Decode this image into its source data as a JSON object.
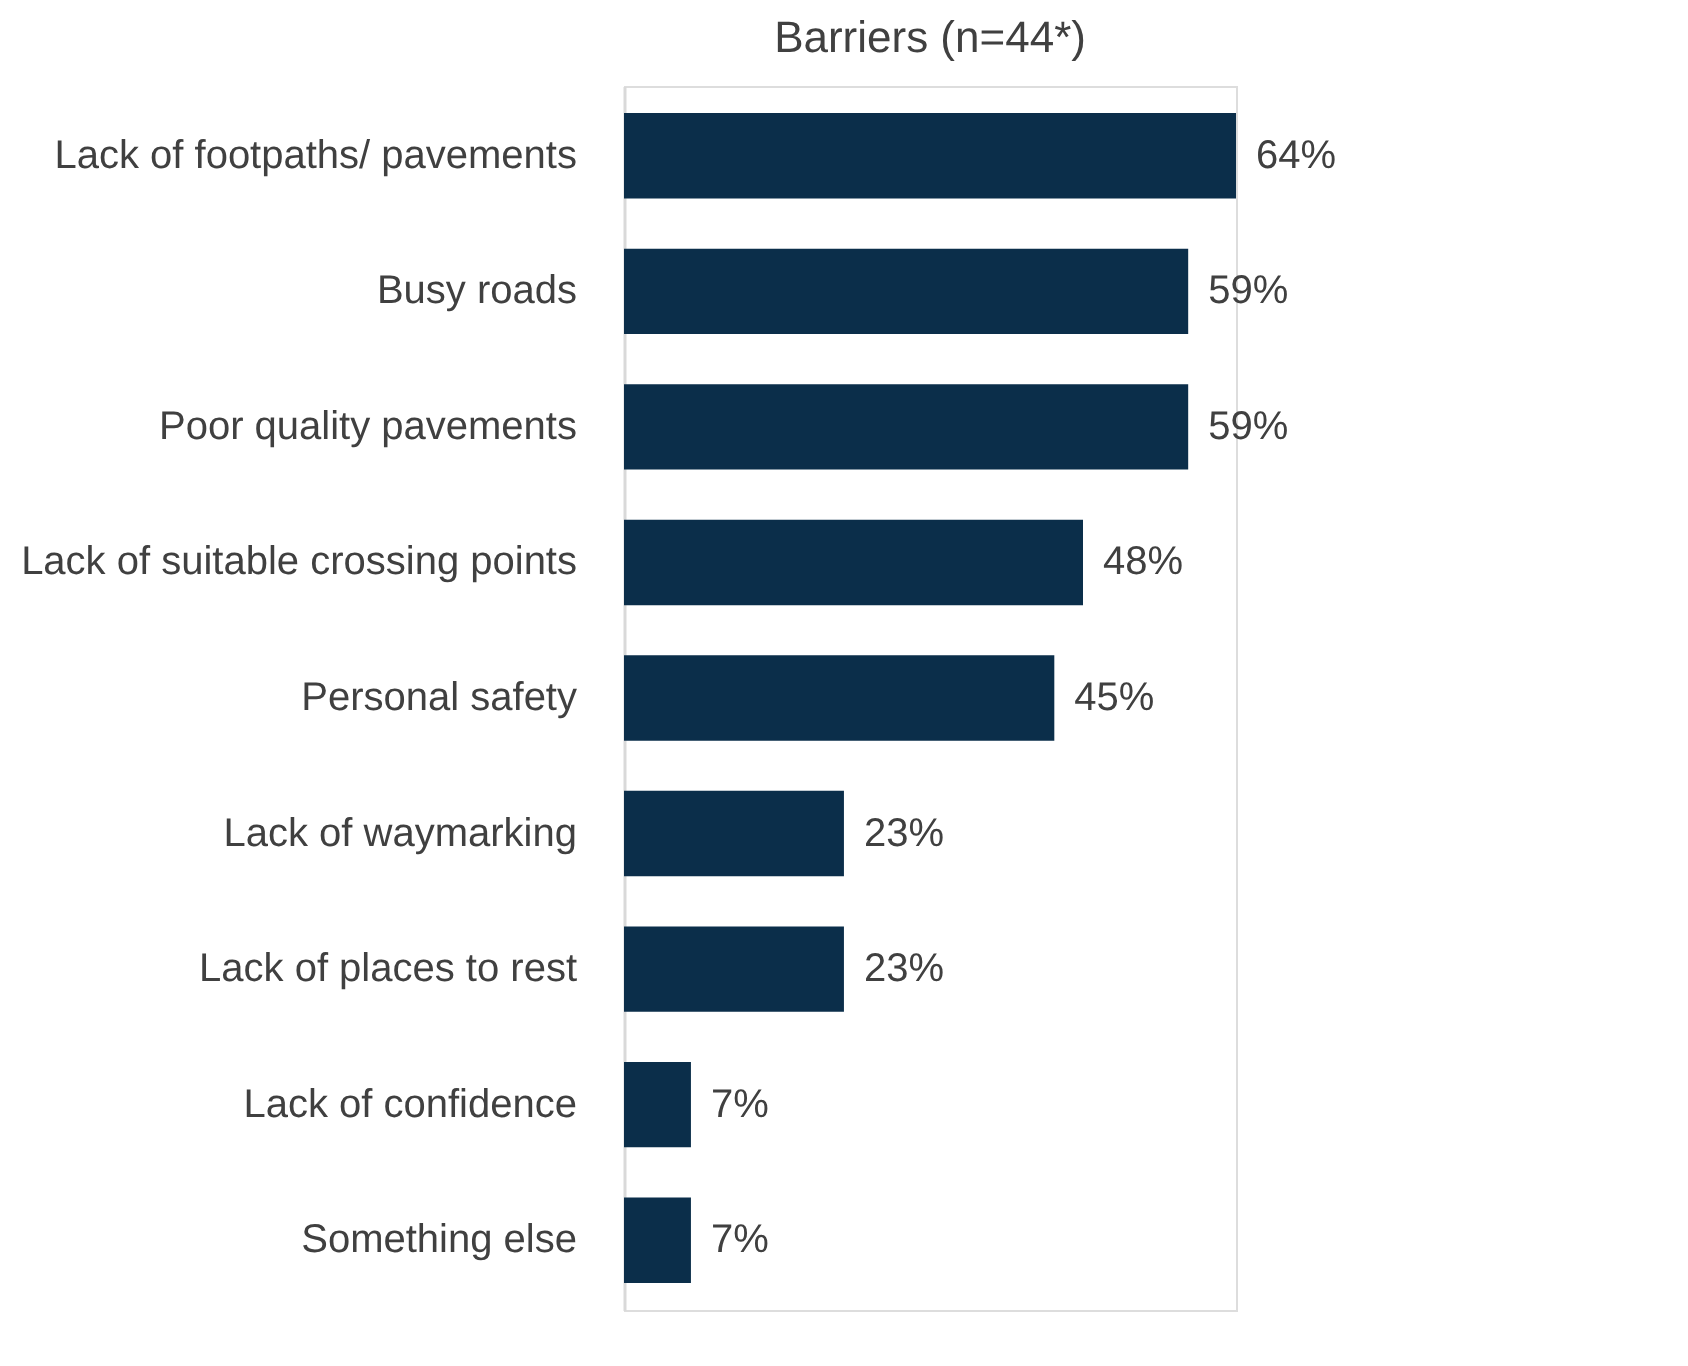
{
  "chart_data": {
    "type": "bar",
    "orientation": "horizontal",
    "title": "Barriers (n=44*)",
    "categories": [
      "Lack of footpaths/ pavements",
      "Busy roads",
      "Poor quality pavements",
      "Lack of suitable crossing points",
      "Personal safety",
      "Lack of waymarking",
      "Lack of places to rest",
      "Lack of confidence",
      "Something else"
    ],
    "values": [
      64,
      59,
      59,
      48,
      45,
      23,
      23,
      7,
      7
    ],
    "value_labels": [
      "64%",
      "59%",
      "59%",
      "48%",
      "45%",
      "23%",
      "23%",
      "7%",
      "7%"
    ],
    "color": "#0b2e4a"
  }
}
